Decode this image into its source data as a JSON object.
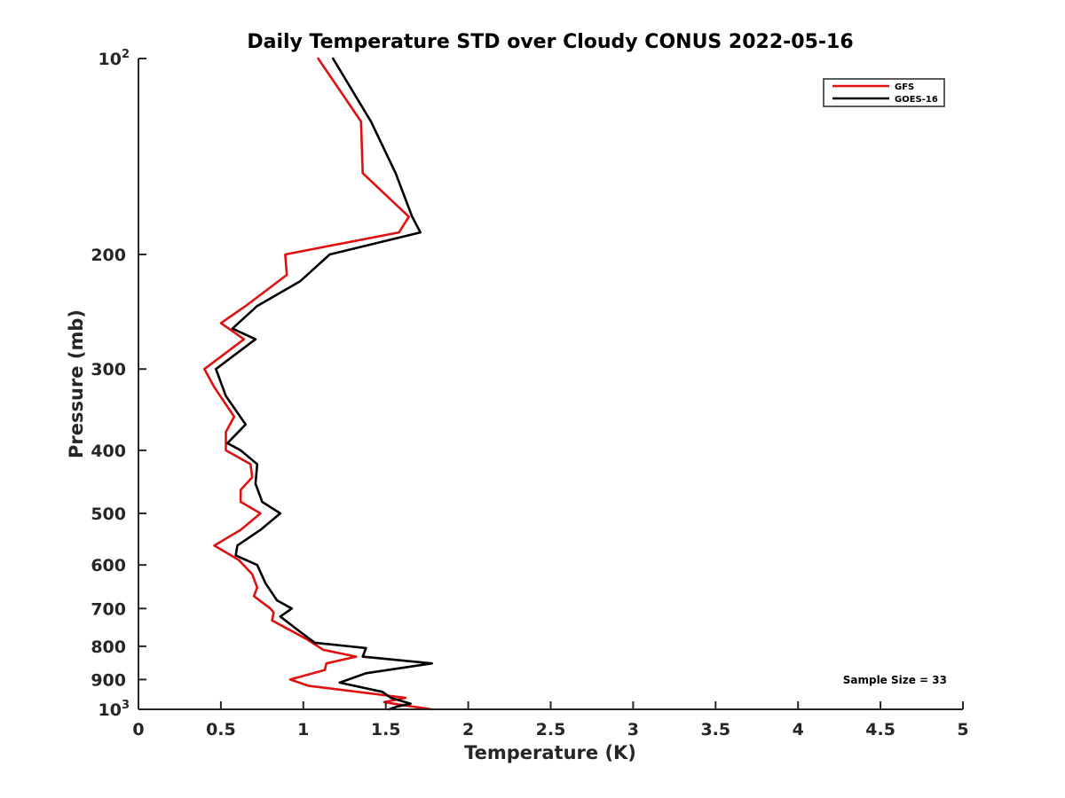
{
  "chart_data": {
    "type": "line",
    "title": "Daily Temperature STD over Cloudy CONUS 2022-05-16",
    "xlabel": "Temperature (K)",
    "ylabel": "Pressure (mb)",
    "xlim": [
      0,
      5
    ],
    "ylim": [
      100,
      1000
    ],
    "y_scale": "log",
    "y_reversed": true,
    "x_ticks": [
      {
        "value": 0,
        "label": "0"
      },
      {
        "value": 0.5,
        "label": "0.5"
      },
      {
        "value": 1,
        "label": "1"
      },
      {
        "value": 1.5,
        "label": "1.5"
      },
      {
        "value": 2,
        "label": "2"
      },
      {
        "value": 2.5,
        "label": "2.5"
      },
      {
        "value": 3,
        "label": "3"
      },
      {
        "value": 3.5,
        "label": "3.5"
      },
      {
        "value": 4,
        "label": "4"
      },
      {
        "value": 4.5,
        "label": "4.5"
      },
      {
        "value": 5,
        "label": "5"
      }
    ],
    "y_ticks": [
      {
        "value": 100,
        "base": "10",
        "exp": "2"
      },
      {
        "value": 200,
        "label": "200"
      },
      {
        "value": 300,
        "label": "300"
      },
      {
        "value": 400,
        "label": "400"
      },
      {
        "value": 500,
        "label": "500"
      },
      {
        "value": 600,
        "label": "600"
      },
      {
        "value": 700,
        "label": "700"
      },
      {
        "value": 800,
        "label": "800"
      },
      {
        "value": 900,
        "label": "900"
      },
      {
        "value": 1000,
        "base": "10",
        "exp": "3"
      }
    ],
    "grid": false,
    "legend_position": "top-right",
    "annotation": "Sample Size = 33",
    "series": [
      {
        "name": "GFS",
        "color": "#e01010",
        "points": [
          [
            1.09,
            100
          ],
          [
            1.35,
            125
          ],
          [
            1.36,
            150
          ],
          [
            1.64,
            175
          ],
          [
            1.58,
            185
          ],
          [
            0.89,
            200
          ],
          [
            0.9,
            215
          ],
          [
            0.65,
            240
          ],
          [
            0.5,
            255
          ],
          [
            0.64,
            270
          ],
          [
            0.4,
            300
          ],
          [
            0.46,
            320
          ],
          [
            0.58,
            355
          ],
          [
            0.53,
            375
          ],
          [
            0.53,
            400
          ],
          [
            0.68,
            420
          ],
          [
            0.69,
            440
          ],
          [
            0.62,
            460
          ],
          [
            0.62,
            480
          ],
          [
            0.74,
            500
          ],
          [
            0.62,
            530
          ],
          [
            0.46,
            560
          ],
          [
            0.61,
            590
          ],
          [
            0.69,
            620
          ],
          [
            0.72,
            650
          ],
          [
            0.7,
            670
          ],
          [
            0.8,
            700
          ],
          [
            0.82,
            710
          ],
          [
            0.81,
            730
          ],
          [
            1.02,
            780
          ],
          [
            1.12,
            810
          ],
          [
            1.32,
            830
          ],
          [
            1.14,
            850
          ],
          [
            1.13,
            870
          ],
          [
            0.92,
            900
          ],
          [
            1.03,
            920
          ],
          [
            1.62,
            960
          ],
          [
            1.49,
            975
          ],
          [
            1.6,
            985
          ],
          [
            1.78,
            1000
          ]
        ]
      },
      {
        "name": "GOES-16",
        "color": "#000000",
        "points": [
          [
            1.18,
            100
          ],
          [
            1.41,
            125
          ],
          [
            1.56,
            150
          ],
          [
            1.66,
            175
          ],
          [
            1.71,
            185
          ],
          [
            1.16,
            200
          ],
          [
            0.98,
            220
          ],
          [
            0.72,
            240
          ],
          [
            0.57,
            260
          ],
          [
            0.71,
            270
          ],
          [
            0.47,
            300
          ],
          [
            0.53,
            330
          ],
          [
            0.65,
            365
          ],
          [
            0.54,
            390
          ],
          [
            0.62,
            400
          ],
          [
            0.72,
            420
          ],
          [
            0.71,
            450
          ],
          [
            0.75,
            480
          ],
          [
            0.86,
            500
          ],
          [
            0.74,
            530
          ],
          [
            0.6,
            560
          ],
          [
            0.59,
            580
          ],
          [
            0.72,
            600
          ],
          [
            0.77,
            640
          ],
          [
            0.84,
            680
          ],
          [
            0.93,
            700
          ],
          [
            0.86,
            720
          ],
          [
            0.98,
            760
          ],
          [
            1.07,
            790
          ],
          [
            1.38,
            805
          ],
          [
            1.36,
            830
          ],
          [
            1.78,
            850
          ],
          [
            1.38,
            880
          ],
          [
            1.22,
            910
          ],
          [
            1.48,
            940
          ],
          [
            1.53,
            960
          ],
          [
            1.65,
            980
          ],
          [
            1.57,
            990
          ],
          [
            1.52,
            1000
          ]
        ]
      }
    ]
  }
}
